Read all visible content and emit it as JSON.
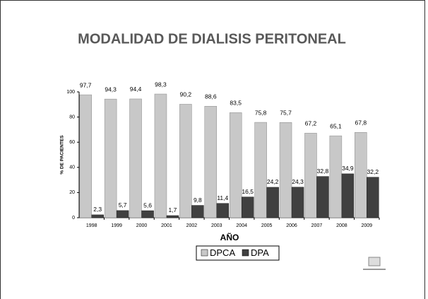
{
  "chart_data": {
    "type": "bar",
    "title": "MODALIDAD DE DIALISIS PERITONEAL",
    "x_label": "AÑO",
    "y_label": "% DE PACIENTES",
    "categories": [
      "1998",
      "1999",
      "2000",
      "2001",
      "2002",
      "2003",
      "2004",
      "2005",
      "2006",
      "2007",
      "2008",
      "2009"
    ],
    "series": [
      {
        "name": "DPCA",
        "color": "#c8c8c8",
        "values": [
          97.7,
          94.3,
          94.4,
          98.3,
          90.2,
          88.6,
          83.5,
          75.8,
          75.7,
          67.2,
          65.1,
          67.8
        ],
        "value_labels": [
          "97,7",
          "94,3",
          "94,4",
          "98,3",
          "90,2",
          "88,6",
          "83,5",
          "75,8",
          "75,7",
          "67,2",
          "65,1",
          "67,8"
        ]
      },
      {
        "name": "DPA",
        "color": "#404040",
        "values": [
          2.3,
          5.7,
          5.6,
          1.7,
          9.8,
          11.4,
          16.5,
          24.2,
          24.3,
          32.8,
          34.9,
          32.2
        ],
        "value_labels": [
          "2,3",
          "5,7",
          "5,6",
          "1,7",
          "9,8",
          "11,4",
          "16,5",
          "24,2",
          "24,3",
          "32,8",
          "34,9",
          "32,2"
        ]
      }
    ],
    "ylim": [
      0,
      100
    ],
    "yticks": [
      0,
      20,
      40,
      60,
      80,
      100
    ],
    "grid": false
  }
}
